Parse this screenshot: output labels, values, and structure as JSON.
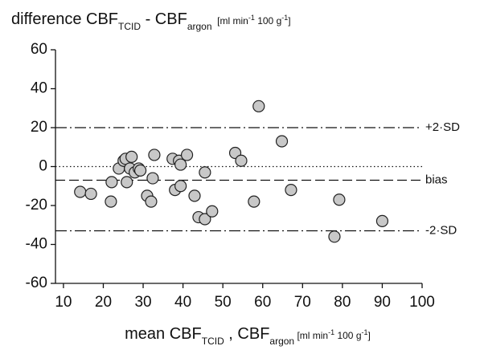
{
  "chart_data": {
    "type": "scatter",
    "title_parts": [
      {
        "text": "difference CBF",
        "style": "main"
      },
      {
        "text": "TCID",
        "style": "sub"
      },
      {
        "text": " - CBF",
        "style": "main"
      },
      {
        "text": "argon",
        "style": "sub"
      },
      {
        "text": "  [ml min",
        "style": "units"
      },
      {
        "text": "-1",
        "style": "sup"
      },
      {
        "text": " 100 g",
        "style": "units"
      },
      {
        "text": "-1",
        "style": "sup"
      },
      {
        "text": "]",
        "style": "units"
      }
    ],
    "x_label_parts": [
      {
        "text": "mean CBF",
        "style": "main"
      },
      {
        "text": "TCID",
        "style": "sub"
      },
      {
        "text": " , CBF",
        "style": "main"
      },
      {
        "text": "argon",
        "style": "sub"
      },
      {
        "text": " [ml min",
        "style": "units"
      },
      {
        "text": "-1",
        "style": "sup"
      },
      {
        "text": " 100 g",
        "style": "units"
      },
      {
        "text": "-1",
        "style": "sup"
      },
      {
        "text": "]",
        "style": "units"
      }
    ],
    "x": [
      14.2,
      16.9,
      21.9,
      22.1,
      23.9,
      25.1,
      25.6,
      26.7,
      25.9,
      27.1,
      27.9,
      28.9,
      29.3,
      31.0,
      32.0,
      32.4,
      32.8,
      38.0,
      37.4,
      39.0,
      39.4,
      39.4,
      41.0,
      42.9,
      43.9,
      45.5,
      45.5,
      47.3,
      53.1,
      54.6,
      59.0,
      57.8,
      64.8,
      67.1,
      78.0,
      79.2,
      90.0
    ],
    "y": [
      -13,
      -14,
      -18,
      -8,
      -1,
      3,
      4,
      -1,
      -8,
      5,
      -3,
      -1,
      -2,
      -15,
      -18,
      -6,
      6,
      -12,
      4,
      3,
      1,
      -10,
      6,
      -15,
      -26,
      -27,
      -3,
      -23,
      7,
      3,
      31,
      -18,
      13,
      -12,
      -36,
      -17,
      -28
    ],
    "point_color": "#c8c8c8",
    "reference_lines": [
      {
        "value": 20,
        "label": "+2·SD",
        "style": "dashdot"
      },
      {
        "value": -7,
        "label": "bias",
        "style": "dashed"
      },
      {
        "value": -33,
        "label": "-2·SD",
        "style": "dashdot"
      },
      {
        "value": 0,
        "style": "dotted"
      }
    ],
    "xlim": [
      8,
      100
    ],
    "xticks": [
      10,
      20,
      30,
      40,
      50,
      60,
      70,
      80,
      90,
      100
    ],
    "ylim": [
      -60,
      60
    ],
    "yticks": [
      -60,
      -40,
      -20,
      0,
      20,
      40,
      60
    ],
    "grid": false
  }
}
